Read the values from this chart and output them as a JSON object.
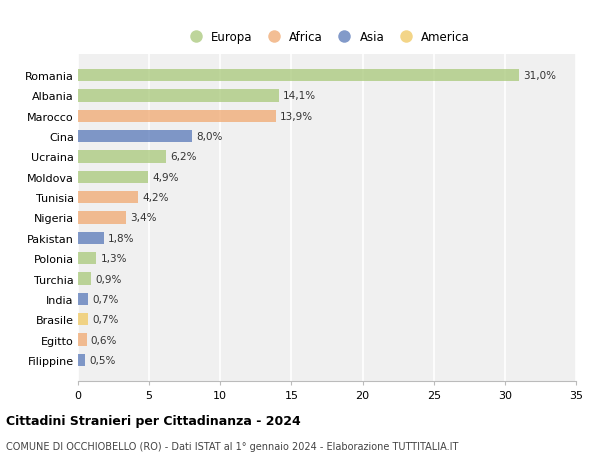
{
  "countries": [
    "Romania",
    "Albania",
    "Marocco",
    "Cina",
    "Ucraina",
    "Moldova",
    "Tunisia",
    "Nigeria",
    "Pakistan",
    "Polonia",
    "Turchia",
    "India",
    "Brasile",
    "Egitto",
    "Filippine"
  ],
  "values": [
    31.0,
    14.1,
    13.9,
    8.0,
    6.2,
    4.9,
    4.2,
    3.4,
    1.8,
    1.3,
    0.9,
    0.7,
    0.7,
    0.6,
    0.5
  ],
  "labels": [
    "31,0%",
    "14,1%",
    "13,9%",
    "8,0%",
    "6,2%",
    "4,9%",
    "4,2%",
    "3,4%",
    "1,8%",
    "1,3%",
    "0,9%",
    "0,7%",
    "0,7%",
    "0,6%",
    "0,5%"
  ],
  "continents": [
    "Europa",
    "Europa",
    "Africa",
    "Asia",
    "Europa",
    "Europa",
    "Africa",
    "Africa",
    "Asia",
    "Europa",
    "Europa",
    "Asia",
    "America",
    "Africa",
    "Asia"
  ],
  "colors": {
    "Europa": "#a8c87a",
    "Africa": "#f0a870",
    "Asia": "#5878b8",
    "America": "#f0c860"
  },
  "xlim": [
    0,
    35
  ],
  "xticks": [
    0,
    5,
    10,
    15,
    20,
    25,
    30,
    35
  ],
  "title": "Cittadini Stranieri per Cittadinanza - 2024",
  "subtitle": "COMUNE DI OCCHIOBELLO (RO) - Dati ISTAT al 1° gennaio 2024 - Elaborazione TUTTITALIA.IT",
  "background_color": "#ffffff",
  "plot_bg_color": "#f0f0f0",
  "grid_color": "#ffffff",
  "bar_alpha": 0.75,
  "bar_height": 0.6,
  "label_fontsize": 7.5,
  "ytick_fontsize": 8,
  "xtick_fontsize": 8
}
